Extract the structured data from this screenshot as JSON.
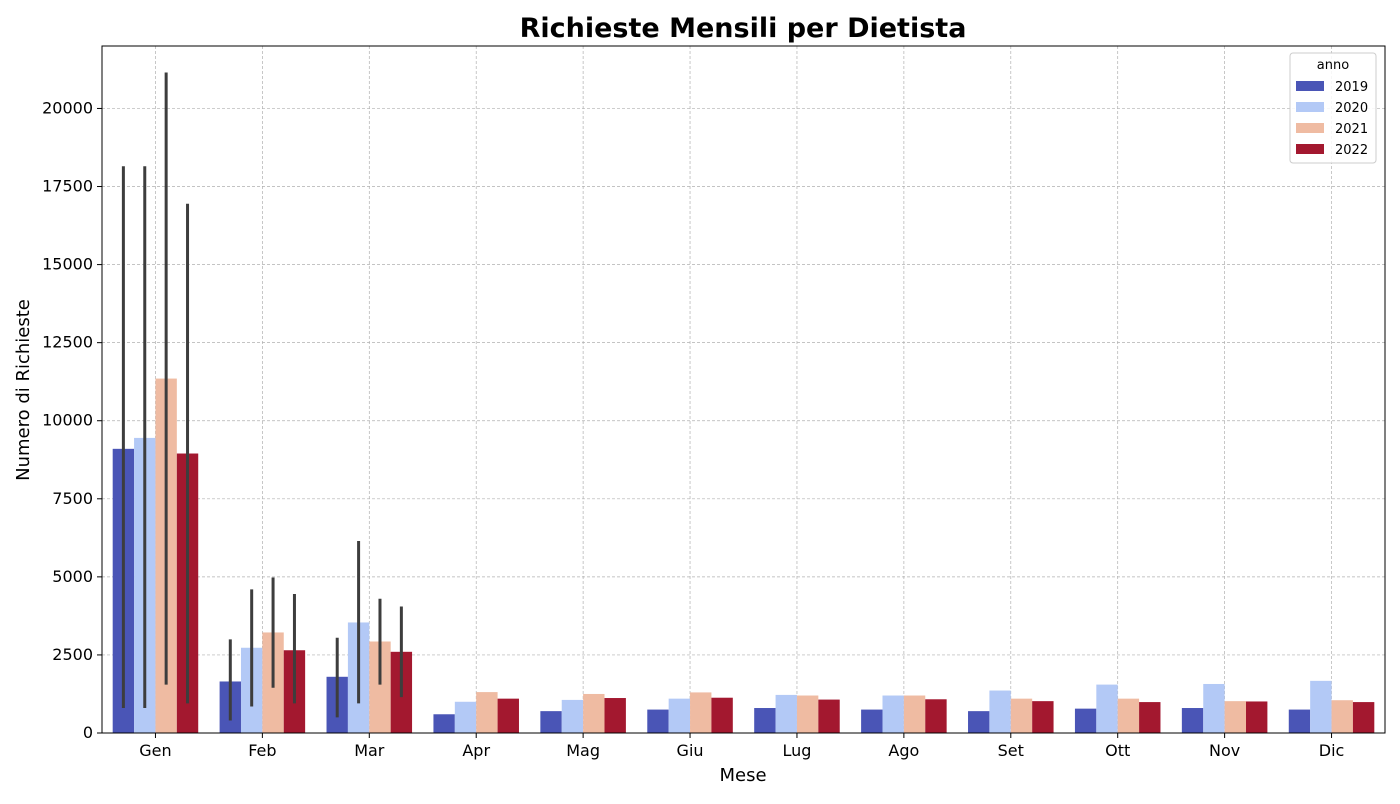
{
  "chart_data": {
    "type": "bar",
    "title": "Richieste Mensili per Dietista",
    "xlabel": "Mese",
    "ylabel": "Numero di Richieste",
    "ylim": [
      0,
      22000
    ],
    "yticks": [
      0,
      2500,
      5000,
      7500,
      10000,
      12500,
      15000,
      17500,
      20000
    ],
    "grid": true,
    "legend": {
      "title": "anno",
      "placement": "top-right"
    },
    "categories": [
      "Gen",
      "Feb",
      "Mar",
      "Apr",
      "Mag",
      "Giu",
      "Lug",
      "Ago",
      "Set",
      "Ott",
      "Nov",
      "Dic"
    ],
    "series": [
      {
        "name": "2019",
        "color": "#4a55b6",
        "values": [
          9100,
          1650,
          1800,
          600,
          700,
          750,
          800,
          750,
          700,
          780,
          800,
          750
        ],
        "error": [
          [
            800,
            18150
          ],
          [
            400,
            3000
          ],
          [
            500,
            3050
          ],
          null,
          null,
          null,
          null,
          null,
          null,
          null,
          null,
          null
        ]
      },
      {
        "name": "2020",
        "color": "#b3c9f6",
        "values": [
          9450,
          2730,
          3540,
          1000,
          1060,
          1100,
          1220,
          1200,
          1360,
          1550,
          1570,
          1670
        ],
        "error": [
          [
            800,
            18150
          ],
          [
            850,
            4600
          ],
          [
            950,
            6150
          ],
          null,
          null,
          null,
          null,
          null,
          null,
          null,
          null,
          null
        ]
      },
      {
        "name": "2021",
        "color": "#efbba2",
        "values": [
          11350,
          3220,
          2930,
          1310,
          1250,
          1300,
          1200,
          1200,
          1100,
          1100,
          1020,
          1050
        ],
        "error": [
          [
            1550,
            21150
          ],
          [
            1450,
            4980
          ],
          [
            1550,
            4300
          ],
          null,
          null,
          null,
          null,
          null,
          null,
          null,
          null,
          null
        ]
      },
      {
        "name": "2022",
        "color": "#a3182f",
        "values": [
          8950,
          2650,
          2600,
          1100,
          1120,
          1130,
          1070,
          1080,
          1020,
          990,
          1010,
          990
        ],
        "error": [
          [
            950,
            16950
          ],
          [
            950,
            4450
          ],
          [
            1150,
            4050
          ],
          null,
          null,
          null,
          null,
          null,
          null,
          null,
          null,
          null
        ]
      }
    ]
  }
}
